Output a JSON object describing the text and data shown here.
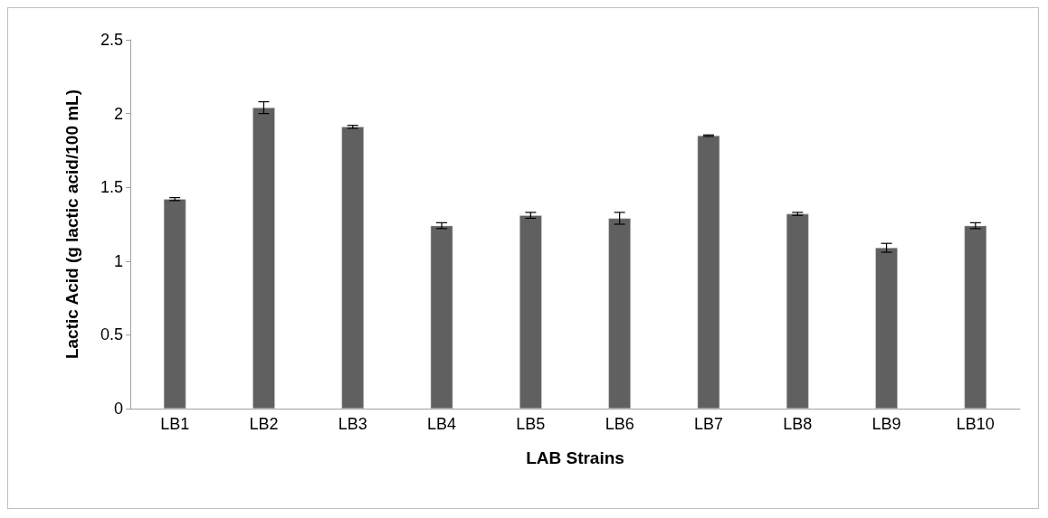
{
  "chart_data": {
    "type": "bar",
    "xlabel": "LAB Strains",
    "ylabel": "Lactic Acid (g lactic acid/100 mL)",
    "categories": [
      "LB1",
      "LB2",
      "LB3",
      "LB4",
      "LB5",
      "LB6",
      "LB7",
      "LB8",
      "LB9",
      "LB10"
    ],
    "values": [
      1.42,
      2.04,
      1.91,
      1.24,
      1.31,
      1.29,
      1.85,
      1.32,
      1.09,
      1.24
    ],
    "errors": [
      0.01,
      0.04,
      0.01,
      0.02,
      0.02,
      0.04,
      0.005,
      0.01,
      0.03,
      0.02
    ],
    "color": "#606060",
    "ylim": [
      0,
      2.5
    ],
    "yticks": [
      0,
      0.5,
      1,
      1.5,
      2,
      2.5
    ],
    "grid": false
  }
}
